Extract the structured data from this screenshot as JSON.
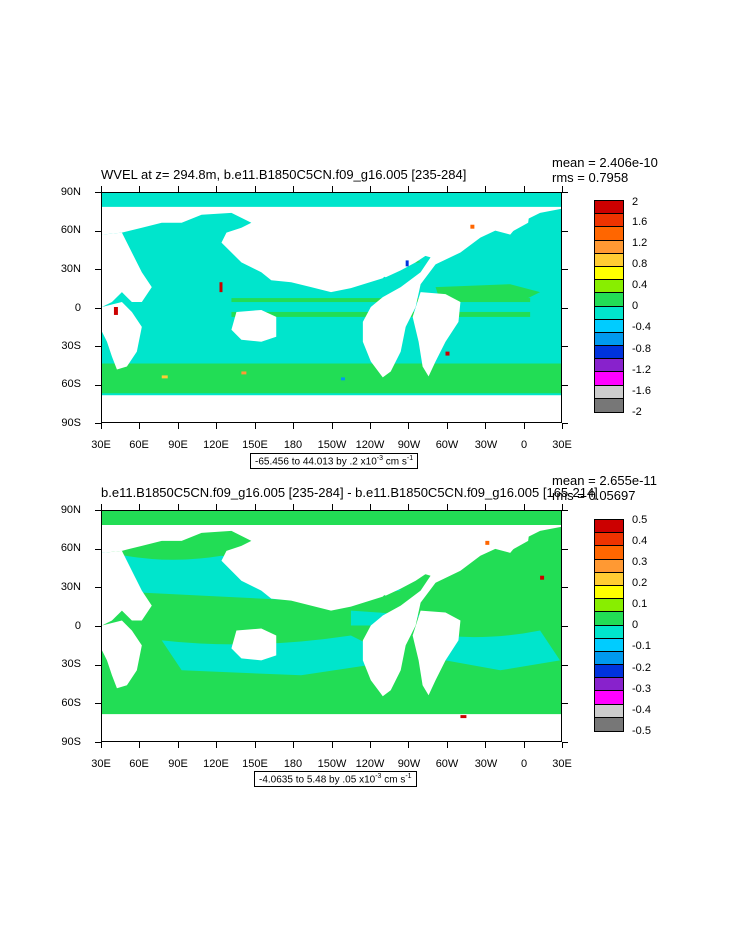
{
  "panels": [
    {
      "title": "WVEL at z= 294.8m, b.e11.B1850C5CN.f09_g16.005 [235-284]",
      "mean": "mean = 2.406e-10",
      "rms": "rms = 0.7958",
      "range_prefix": "-65.456 to 44.013 by .2 x10",
      "range_exp": "-3",
      "range_suffix": " cm s",
      "range_unit_exp": "-1",
      "legend_labels": [
        "2",
        "1.6",
        "1.2",
        "0.8",
        "0.4",
        "0",
        "-0.4",
        "-0.8",
        "-1.2",
        "-1.6",
        "-2"
      ],
      "ocean_color": "#00e5cc",
      "positive_color": "#22dd55"
    },
    {
      "title": "b.e11.B1850C5CN.f09_g16.005 [235-284] - b.e11.B1850C5CN.f09_g16.005 [165-214]",
      "mean": "mean = 2.655e-11",
      "rms": "rms = 0.05697",
      "range_prefix": "-4.0635 to 5.48 by .05 x10",
      "range_exp": "-3",
      "range_suffix": " cm s",
      "range_unit_exp": "-1",
      "legend_labels": [
        "0.5",
        "0.4",
        "0.3",
        "0.2",
        "0.1",
        "0",
        "-0.1",
        "-0.2",
        "-0.3",
        "-0.4",
        "-0.5"
      ],
      "ocean_color": "#22dd55",
      "positive_color": "#00e5cc"
    }
  ],
  "lat_labels": [
    "90N",
    "60N",
    "30N",
    "0",
    "30S",
    "60S",
    "90S"
  ],
  "lon_labels": [
    "30E",
    "60E",
    "90E",
    "120E",
    "150E",
    "180",
    "150W",
    "120W",
    "90W",
    "60W",
    "30W",
    "0",
    "30E"
  ],
  "legend_colors": [
    "#cc0000",
    "#ee3300",
    "#ff6600",
    "#ff9933",
    "#ffcc33",
    "#ffff00",
    "#88ee00",
    "#22dd55",
    "#00e5cc",
    "#00ccff",
    "#0099ee",
    "#0033dd",
    "#8822cc",
    "#ff00ff",
    "#cccccc",
    "#777777"
  ]
}
